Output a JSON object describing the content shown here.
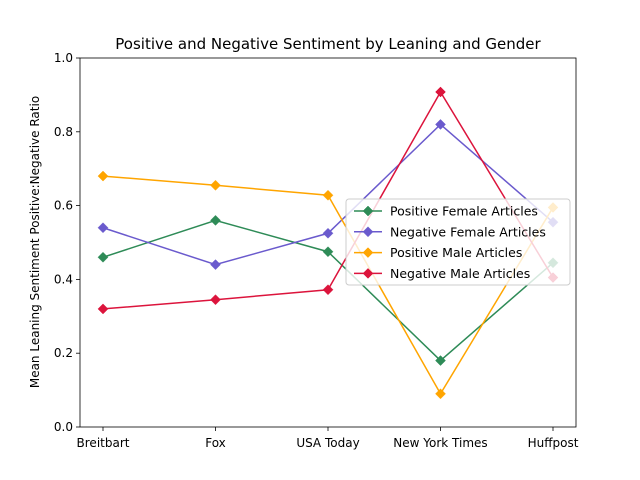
{
  "chart_data": {
    "type": "line",
    "title": "Positive and Negative Sentiment by Leaning and Gender",
    "xlabel": "",
    "ylabel": "Mean Leaning Sentiment Positive:Negative Ratio",
    "categories": [
      "Breitbart",
      "Fox",
      "USA Today",
      "New York Times",
      "Huffpost"
    ],
    "ylim": [
      0.0,
      1.0
    ],
    "yticks": [
      "0.0",
      "0.2",
      "0.4",
      "0.6",
      "0.8",
      "1.0"
    ],
    "legend_position": "center-right",
    "grid": false,
    "series": [
      {
        "name": "Positive Female Articles",
        "color": "#2e8b57",
        "marker": "diamond",
        "values": [
          0.46,
          0.56,
          0.475,
          0.18,
          0.445
        ]
      },
      {
        "name": "Negative Female Articles",
        "color": "#6a5acd",
        "marker": "diamond",
        "values": [
          0.54,
          0.44,
          0.525,
          0.82,
          0.555
        ]
      },
      {
        "name": "Positive Male Articles",
        "color": "#ffa500",
        "marker": "diamond",
        "values": [
          0.68,
          0.655,
          0.628,
          0.09,
          0.595
        ]
      },
      {
        "name": "Negative Male Articles",
        "color": "#dc143c",
        "marker": "diamond",
        "values": [
          0.32,
          0.345,
          0.372,
          0.908,
          0.405
        ]
      }
    ]
  }
}
